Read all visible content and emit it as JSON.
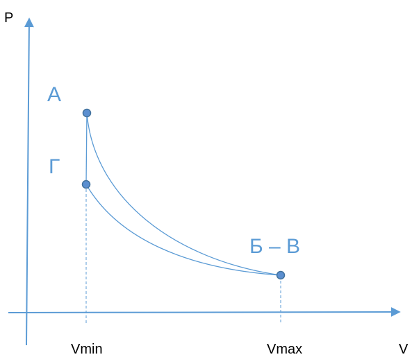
{
  "diagram": {
    "axes": {
      "y_label": "P",
      "x_label": "V"
    },
    "ticks": {
      "vmin": "Vmin",
      "vmax": "Vmax"
    },
    "points": {
      "a": "А",
      "g": "Г",
      "bv": "Б – В"
    },
    "colors": {
      "axis": "#5b9bd5",
      "curve": "#5b9bd5",
      "point_fill": "#5b8fd0",
      "point_stroke": "#41719c",
      "label": "#5b9bd5"
    }
  }
}
